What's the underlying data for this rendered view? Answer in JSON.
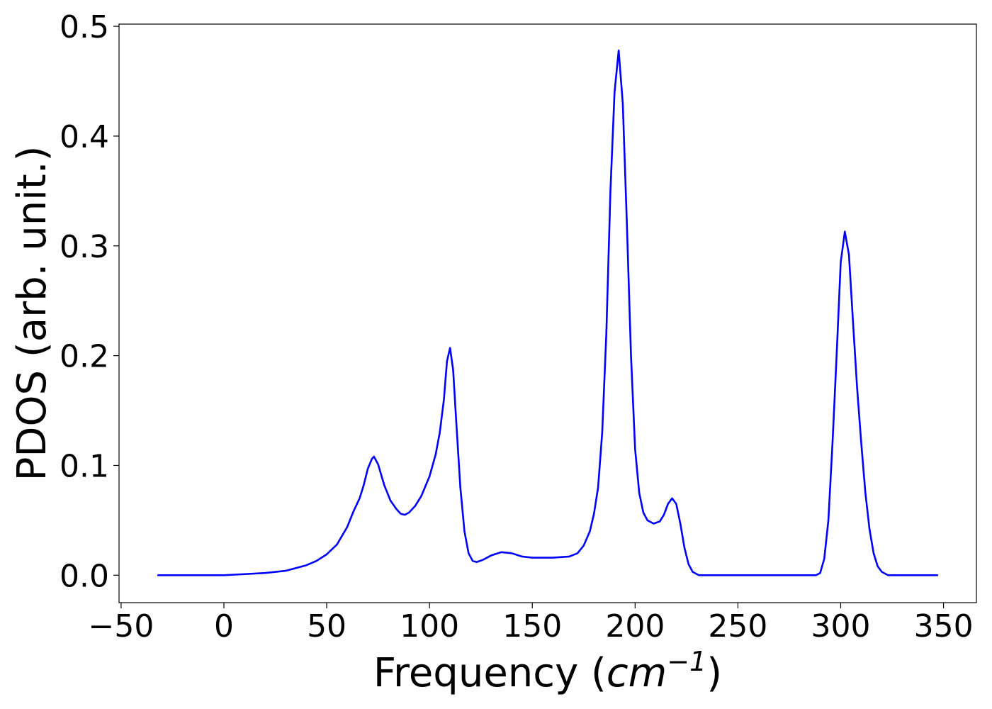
{
  "chart_data": {
    "type": "line",
    "title": "",
    "xlabel": "Frequency",
    "xlabel_unit_base": "cm",
    "xlabel_unit_exp": "−1",
    "ylabel": "PDOS (arb. unit.)",
    "xlim": [
      -51,
      366
    ],
    "ylim": [
      -0.025,
      0.502
    ],
    "x_ticks": [
      -50,
      0,
      50,
      100,
      150,
      200,
      250,
      300,
      350
    ],
    "x_tick_labels": [
      "−50",
      "0",
      "50",
      "100",
      "150",
      "200",
      "250",
      "300",
      "350"
    ],
    "y_ticks": [
      0.0,
      0.1,
      0.2,
      0.3,
      0.4,
      0.5
    ],
    "y_tick_labels": [
      "0.0",
      "0.1",
      "0.2",
      "0.3",
      "0.4",
      "0.5"
    ],
    "grid": false,
    "legend": "none",
    "series": [
      {
        "color": "#0000ff",
        "points": [
          [
            -32,
            0.0
          ],
          [
            0,
            0.0
          ],
          [
            10,
            0.001
          ],
          [
            20,
            0.002
          ],
          [
            30,
            0.004
          ],
          [
            40,
            0.009
          ],
          [
            45,
            0.013
          ],
          [
            50,
            0.019
          ],
          [
            55,
            0.028
          ],
          [
            60,
            0.044
          ],
          [
            63,
            0.058
          ],
          [
            66,
            0.07
          ],
          [
            68,
            0.082
          ],
          [
            70,
            0.097
          ],
          [
            72,
            0.106
          ],
          [
            73,
            0.108
          ],
          [
            75,
            0.101
          ],
          [
            78,
            0.082
          ],
          [
            81,
            0.068
          ],
          [
            84,
            0.06
          ],
          [
            86,
            0.056
          ],
          [
            88,
            0.055
          ],
          [
            90,
            0.057
          ],
          [
            93,
            0.063
          ],
          [
            96,
            0.072
          ],
          [
            100,
            0.09
          ],
          [
            103,
            0.11
          ],
          [
            105,
            0.13
          ],
          [
            107,
            0.16
          ],
          [
            108.5,
            0.195
          ],
          [
            110,
            0.207
          ],
          [
            111.5,
            0.187
          ],
          [
            113,
            0.14
          ],
          [
            115,
            0.08
          ],
          [
            117,
            0.04
          ],
          [
            119,
            0.02
          ],
          [
            121,
            0.013
          ],
          [
            123,
            0.012
          ],
          [
            126,
            0.014
          ],
          [
            130,
            0.018
          ],
          [
            135,
            0.021
          ],
          [
            140,
            0.02
          ],
          [
            145,
            0.017
          ],
          [
            150,
            0.016
          ],
          [
            160,
            0.016
          ],
          [
            168,
            0.017
          ],
          [
            172,
            0.02
          ],
          [
            175,
            0.027
          ],
          [
            178,
            0.04
          ],
          [
            180,
            0.056
          ],
          [
            182,
            0.08
          ],
          [
            184,
            0.13
          ],
          [
            186,
            0.22
          ],
          [
            188,
            0.35
          ],
          [
            190,
            0.44
          ],
          [
            192,
            0.478
          ],
          [
            194,
            0.43
          ],
          [
            196,
            0.32
          ],
          [
            198,
            0.2
          ],
          [
            200,
            0.115
          ],
          [
            202,
            0.075
          ],
          [
            204,
            0.057
          ],
          [
            206,
            0.05
          ],
          [
            209,
            0.047
          ],
          [
            212,
            0.049
          ],
          [
            214,
            0.055
          ],
          [
            216,
            0.065
          ],
          [
            218,
            0.07
          ],
          [
            220,
            0.065
          ],
          [
            222,
            0.047
          ],
          [
            224,
            0.025
          ],
          [
            226,
            0.01
          ],
          [
            228,
            0.003
          ],
          [
            231,
            0.0
          ],
          [
            240,
            0.0
          ],
          [
            288,
            0.0
          ],
          [
            290,
            0.002
          ],
          [
            292,
            0.015
          ],
          [
            294,
            0.05
          ],
          [
            296,
            0.12
          ],
          [
            298,
            0.2
          ],
          [
            300,
            0.285
          ],
          [
            302,
            0.313
          ],
          [
            304,
            0.292
          ],
          [
            306,
            0.23
          ],
          [
            308,
            0.17
          ],
          [
            310,
            0.12
          ],
          [
            312,
            0.075
          ],
          [
            314,
            0.042
          ],
          [
            316,
            0.02
          ],
          [
            318,
            0.008
          ],
          [
            320,
            0.003
          ],
          [
            323,
            0.0
          ],
          [
            347,
            0.0
          ]
        ]
      }
    ]
  }
}
